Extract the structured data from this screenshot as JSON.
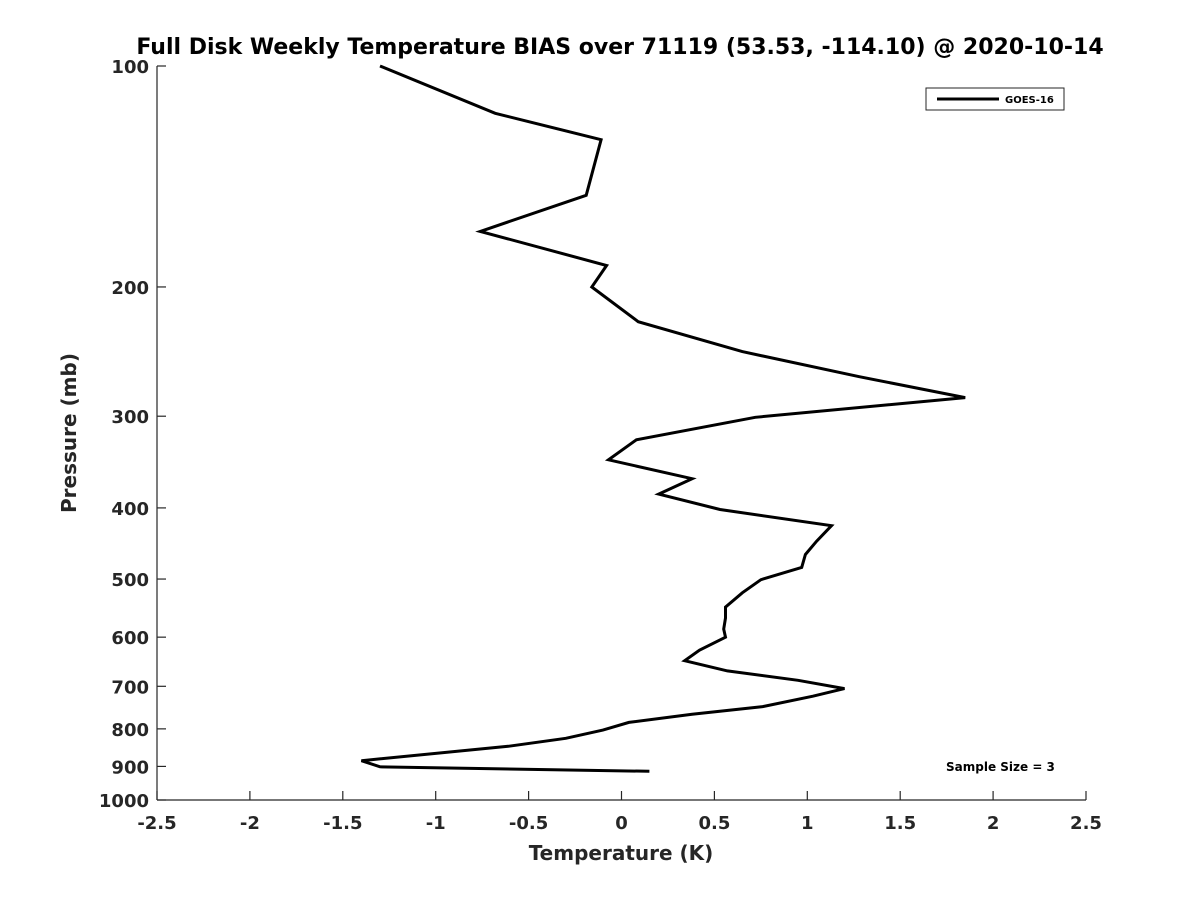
{
  "chart_data": {
    "type": "line",
    "title": "Full Disk Weekly Temperature BIAS over 71119 (53.53, -114.10) @ 2020-10-14",
    "xlabel": "Temperature (K)",
    "ylabel": "Pressure (mb)",
    "xlim": [
      -2.5,
      2.5
    ],
    "ylim": [
      100,
      1000
    ],
    "y_scale": "log",
    "y_reversed": true,
    "grid": false,
    "legend_position": "top-right",
    "x_ticks": [
      -2.5,
      -2,
      -1.5,
      -1,
      -0.5,
      0,
      0.5,
      1,
      1.5,
      2,
      2.5
    ],
    "x_tick_labels": [
      "-2.5",
      "-2",
      "-1.5",
      "-1",
      "-0.5",
      "0",
      "0.5",
      "1",
      "1.5",
      "2",
      "2.5"
    ],
    "y_ticks": [
      100,
      200,
      300,
      400,
      500,
      600,
      700,
      800,
      900,
      1000
    ],
    "y_tick_labels": [
      "100",
      "200",
      "300",
      "400",
      "500",
      "600",
      "700",
      "800",
      "900",
      "1000"
    ],
    "series": [
      {
        "name": "GOES-16",
        "color": "#000000",
        "points": [
          {
            "x": -1.3,
            "y": 100
          },
          {
            "x": -0.68,
            "y": 116
          },
          {
            "x": -0.11,
            "y": 126
          },
          {
            "x": -0.19,
            "y": 150
          },
          {
            "x": -0.76,
            "y": 168
          },
          {
            "x": -0.08,
            "y": 187
          },
          {
            "x": -0.16,
            "y": 200
          },
          {
            "x": 0.09,
            "y": 223
          },
          {
            "x": 0.65,
            "y": 245
          },
          {
            "x": 1.28,
            "y": 265
          },
          {
            "x": 1.85,
            "y": 283
          },
          {
            "x": 0.72,
            "y": 301
          },
          {
            "x": 0.08,
            "y": 323
          },
          {
            "x": -0.07,
            "y": 344
          },
          {
            "x": 0.38,
            "y": 365
          },
          {
            "x": 0.2,
            "y": 383
          },
          {
            "x": 0.53,
            "y": 402
          },
          {
            "x": 1.13,
            "y": 423
          },
          {
            "x": 1.05,
            "y": 444
          },
          {
            "x": 0.99,
            "y": 463
          },
          {
            "x": 0.97,
            "y": 482
          },
          {
            "x": 0.75,
            "y": 501
          },
          {
            "x": 0.65,
            "y": 522
          },
          {
            "x": 0.56,
            "y": 546
          },
          {
            "x": 0.56,
            "y": 565
          },
          {
            "x": 0.55,
            "y": 585
          },
          {
            "x": 0.56,
            "y": 600
          },
          {
            "x": 0.42,
            "y": 625
          },
          {
            "x": 0.34,
            "y": 646
          },
          {
            "x": 0.57,
            "y": 667
          },
          {
            "x": 0.95,
            "y": 687
          },
          {
            "x": 1.2,
            "y": 705
          },
          {
            "x": 1.03,
            "y": 722
          },
          {
            "x": 0.76,
            "y": 746
          },
          {
            "x": 0.38,
            "y": 764
          },
          {
            "x": 0.04,
            "y": 784
          },
          {
            "x": -0.1,
            "y": 803
          },
          {
            "x": -0.3,
            "y": 824
          },
          {
            "x": -0.61,
            "y": 845
          },
          {
            "x": -1.4,
            "y": 884
          },
          {
            "x": -1.3,
            "y": 901
          },
          {
            "x": 0.15,
            "y": 914
          }
        ]
      }
    ],
    "annotations": [
      {
        "text": "Sample Size = 3",
        "position": "bottom-right"
      }
    ]
  }
}
